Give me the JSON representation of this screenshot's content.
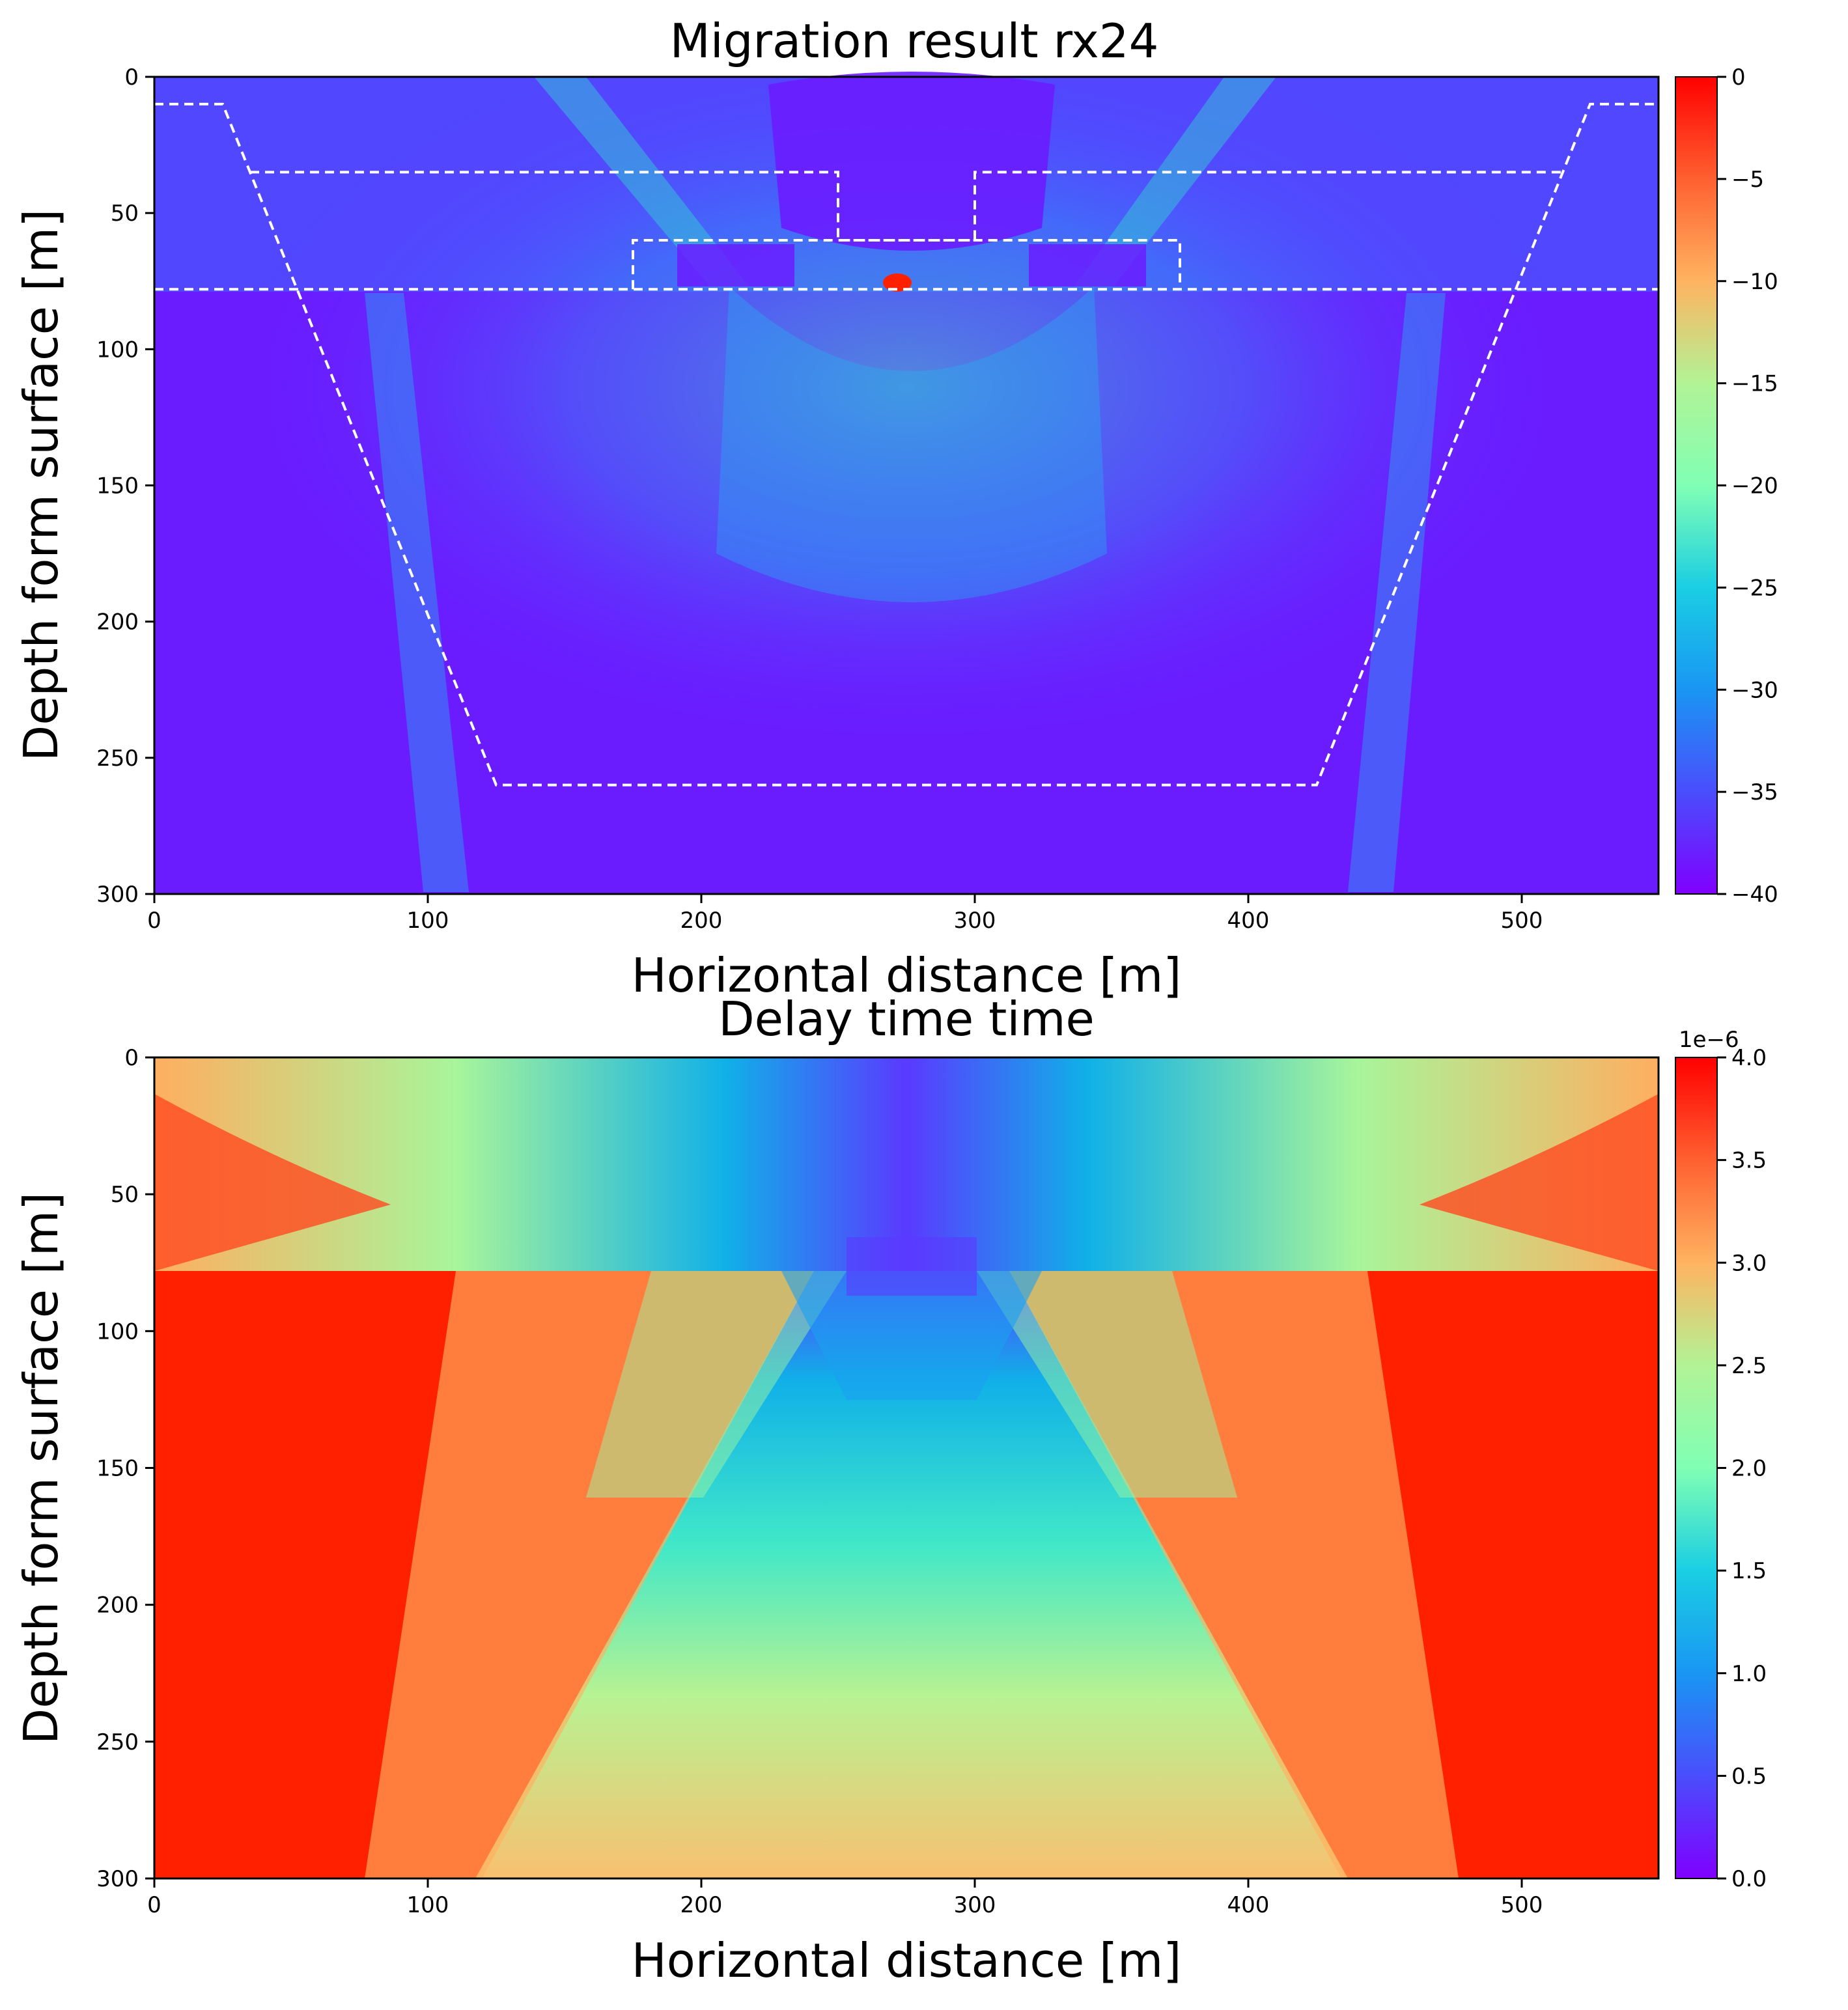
{
  "chart_data": [
    {
      "type": "heatmap",
      "title": "Migration result rx24",
      "xlabel": "Horizontal distance [m]",
      "ylabel": "Depth form surface [m]",
      "xlim": [
        0,
        550
      ],
      "ylim": [
        300,
        0
      ],
      "xticks": [
        0,
        100,
        200,
        300,
        400,
        500
      ],
      "yticks": [
        0,
        50,
        100,
        150,
        200,
        250,
        300
      ],
      "colormap": "rainbow",
      "colorbar": {
        "range": [
          -40,
          0
        ],
        "ticks": [
          0,
          -5,
          -10,
          -15,
          -20,
          -25,
          -30,
          -35,
          -40
        ],
        "tick_labels": [
          "0",
          "−5",
          "−10",
          "−15",
          "−20",
          "−25",
          "−30",
          "−35",
          "−40"
        ]
      },
      "outlines": {
        "style": "white-dashed",
        "paths": [
          [
            [
              0,
              10
            ],
            [
              25,
              10
            ],
            [
              125,
              260
            ],
            [
              425,
              260
            ],
            [
              525,
              10
            ],
            [
              550,
              10
            ]
          ],
          [
            [
              35,
              35
            ],
            [
              250,
              35
            ],
            [
              250,
              60
            ],
            [
              300,
              60
            ],
            [
              300,
              35
            ],
            [
              515,
              35
            ]
          ],
          [
            [
              175,
              78
            ],
            [
              175,
              60
            ],
            [
              375,
              60
            ],
            [
              375,
              78
            ]
          ],
          [
            [
              0,
              78
            ],
            [
              550,
              78
            ]
          ]
        ]
      },
      "grid": false
    },
    {
      "type": "heatmap",
      "title": "Delay time time",
      "xlabel": "Horizontal distance [m]",
      "ylabel": "Depth form surface [m]",
      "xlim": [
        0,
        550
      ],
      "ylim": [
        300,
        0
      ],
      "xticks": [
        0,
        100,
        200,
        300,
        400,
        500
      ],
      "yticks": [
        0,
        50,
        100,
        150,
        200,
        250,
        300
      ],
      "colormap": "rainbow",
      "colorbar": {
        "range": [
          0,
          4
        ],
        "offset_label": "1e−6",
        "ticks": [
          4.0,
          3.5,
          3.0,
          2.5,
          2.0,
          1.5,
          1.0,
          0.5,
          0.0
        ],
        "tick_labels": [
          "4.0",
          "3.5",
          "3.0",
          "2.5",
          "2.0",
          "1.5",
          "1.0",
          "0.5",
          "0.0"
        ]
      },
      "grid": false
    }
  ]
}
